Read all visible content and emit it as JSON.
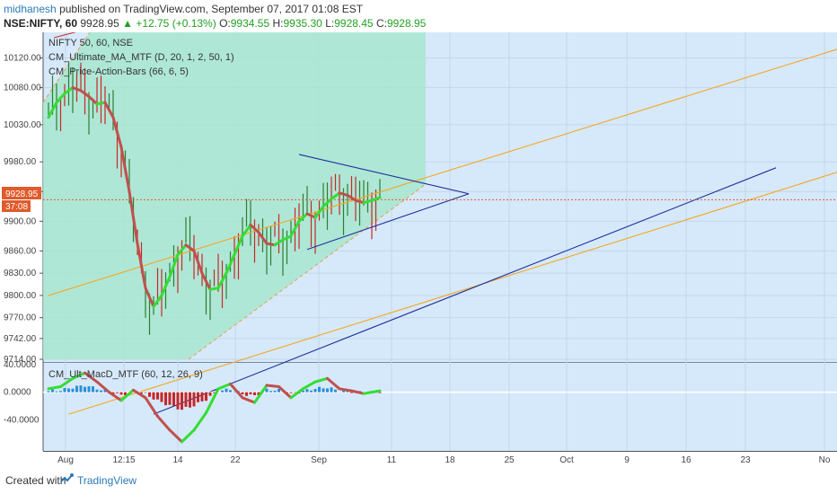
{
  "header": {
    "author": "midhanesh",
    "published": "published on TradingView.com, September 07, 2017 01:08 EST",
    "symbol": "NSE:NIFTY, 60",
    "last": "9928.95",
    "change": "▲ +12.75 (+0.13%)",
    "o_label": "O:",
    "o": "9934.55",
    "h_label": "H:",
    "h": "9935.30",
    "l_label": "L:",
    "l": "9928.45",
    "c_label": "C:",
    "c": "9928.95"
  },
  "legend": {
    "line1": "NIFTY 50, 60, NSE",
    "line2": "CM_Ultimate_MA_MTF (D, 20, 1, 2, 50, 1)",
    "line3": "CM_Price-Action-Bars (66, 6, 5)",
    "macd": "CM_Ult_MacD_MTF (60, 12, 26, 9)"
  },
  "price_badge": {
    "price": "9928.95",
    "countdown": "37:08"
  },
  "footer": {
    "created_with": "Created with",
    "brand": "TradingView"
  },
  "colors": {
    "pane_bg": "#d6e9fb",
    "channel_fill": "#a8e6cf",
    "ma_up": "#33dd33",
    "ma_down": "#c0504d",
    "bull_bar": "#2e7d32",
    "bear_bar": "#c62828",
    "trendline_orange": "#f5a623",
    "trendline_blue": "#1f2f9c",
    "price_line": "#e05a2b"
  },
  "chart_data": {
    "type": "line",
    "symbol": "NIFTY 50",
    "interval": "60",
    "price_ylim": [
      9714,
      10140
    ],
    "price_ticks": [
      "10120.00",
      "10080.00",
      "10030.00",
      "9980.00",
      "9940.00",
      "9900.00",
      "9860.00",
      "9830.00",
      "9800.00",
      "9770.00",
      "9742.00",
      "9714.00"
    ],
    "macd_ylim": [
      -80,
      40
    ],
    "macd_ticks": [
      "40.0000",
      "0.0000",
      "-40.0000"
    ],
    "x_ticks": [
      "Aug",
      "12:15",
      "14",
      "22",
      "Sep",
      "11",
      "18",
      "25",
      "Oct",
      "9",
      "16",
      "23",
      "No"
    ],
    "ma_series": {
      "name": "CM_Ultimate_MA_MTF",
      "x": [
        0,
        2,
        4,
        6,
        8,
        10,
        12,
        14,
        16,
        18,
        20,
        22,
        24,
        26,
        28,
        30,
        32,
        34,
        36,
        38,
        40,
        42,
        44,
        46,
        48,
        50,
        52,
        54,
        56,
        58,
        60,
        62,
        64,
        66,
        68,
        70,
        72,
        74,
        76,
        78,
        80,
        82
      ],
      "values": [
        10040,
        10060,
        10072,
        10080,
        10076,
        10068,
        10058,
        10060,
        10040,
        10000,
        9940,
        9870,
        9810,
        9785,
        9800,
        9825,
        9855,
        9868,
        9860,
        9830,
        9808,
        9810,
        9830,
        9855,
        9880,
        9895,
        9885,
        9870,
        9868,
        9875,
        9880,
        9900,
        9910,
        9905,
        9920,
        9930,
        9938,
        9935,
        9928,
        9925,
        9928,
        9932
      ]
    },
    "macd_series": {
      "name": "CM_Ult_MacD_MTF",
      "x": [
        0,
        3,
        6,
        9,
        12,
        15,
        18,
        21,
        24,
        27,
        30,
        33,
        36,
        39,
        42,
        45,
        48,
        51,
        54,
        57,
        60,
        63,
        66,
        69,
        72,
        75,
        78,
        82
      ],
      "values": [
        5,
        8,
        20,
        28,
        15,
        0,
        -12,
        3,
        -8,
        -35,
        -55,
        -72,
        -55,
        -30,
        5,
        12,
        -8,
        -15,
        10,
        8,
        -8,
        5,
        15,
        20,
        5,
        2,
        -2,
        2
      ]
    },
    "trendlines": [
      {
        "name": "orange-upper",
        "color": "#f5a623",
        "points": [
          [
            0,
            9800
          ],
          [
            200,
            10140
          ]
        ]
      },
      {
        "name": "orange-lower",
        "color": "#f5a623",
        "points": [
          [
            5,
            9640
          ],
          [
            250,
            10060
          ]
        ]
      },
      {
        "name": "blue-lower",
        "color": "#1f2f9c",
        "points": [
          [
            26,
            9640
          ],
          [
            180,
            9972
          ]
        ]
      },
      {
        "name": "triangle-upper",
        "color": "#1f2f9c",
        "points": [
          [
            62,
            9990
          ],
          [
            104,
            9937
          ]
        ]
      },
      {
        "name": "triangle-lower",
        "color": "#1f2f9c",
        "points": [
          [
            64,
            9862
          ],
          [
            104,
            9937
          ]
        ]
      }
    ],
    "current_price": 9928.95
  }
}
